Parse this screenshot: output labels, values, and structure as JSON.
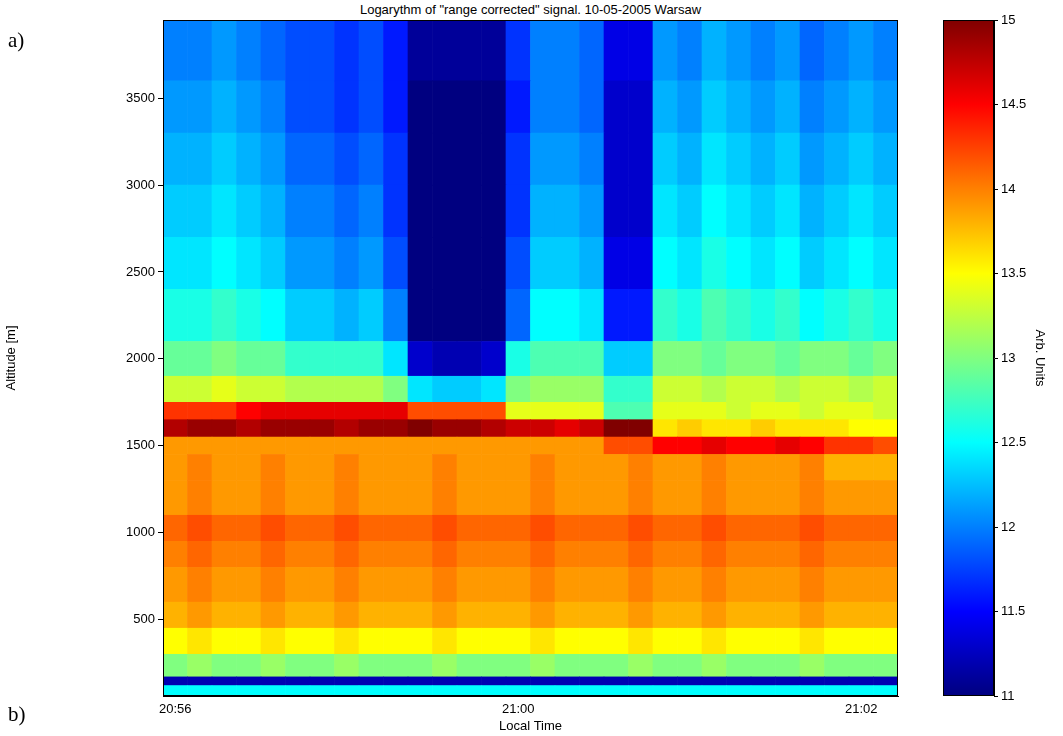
{
  "chart_data": {
    "type": "heatmap",
    "title": "Logarythm of \"range corrected\" signal. 10-05-2005 Warsaw",
    "x_label": "Local Time",
    "y_label": "Altitude [m]",
    "annotations": [
      "a)",
      "b)"
    ],
    "categories": [
      "20:56",
      null,
      null,
      null,
      null,
      null,
      null,
      null,
      null,
      null,
      null,
      null,
      null,
      null,
      "21:00",
      null,
      null,
      null,
      null,
      null,
      null,
      null,
      null,
      null,
      null,
      null,
      null,
      null,
      "21:02",
      null
    ],
    "y_edges": [
      60,
      120,
      170,
      300,
      450,
      600,
      800,
      950,
      1100,
      1300,
      1450,
      1550,
      1650,
      1750,
      1900,
      2100,
      2400,
      2700,
      3000,
      3300,
      3600,
      3950
    ],
    "ylim": [
      60,
      3950
    ],
    "yticks": [
      500,
      1000,
      1500,
      2000,
      2500,
      3000,
      3500
    ],
    "color": "jet",
    "colorbar": {
      "label": "Arb. Units",
      "range": [
        11,
        15
      ],
      "ticks": [
        11,
        11.5,
        12,
        12.5,
        13,
        13.5,
        14,
        14.5,
        15
      ]
    },
    "cells": [
      [
        12.5,
        12.5,
        12.5,
        12.5,
        12.5,
        12.5,
        12.5,
        12.5,
        12.5,
        12.5,
        12.5,
        12.5,
        12.5,
        12.5,
        12.5,
        12.5,
        12.5,
        12.5,
        12.5,
        12.5,
        12.5,
        12.5,
        12.5,
        12.5,
        12.5,
        12.5,
        12.5,
        12.5,
        12.5,
        12.5
      ],
      [
        11.2,
        11.2,
        11.2,
        11.2,
        11.2,
        11.2,
        11.2,
        11.2,
        11.2,
        11.2,
        11.2,
        11.2,
        11.2,
        11.2,
        11.2,
        11.2,
        11.2,
        11.2,
        11.2,
        11.2,
        11.2,
        11.2,
        11.2,
        11.2,
        11.2,
        11.2,
        11.2,
        11.2,
        11.2,
        11.2
      ],
      [
        13.0,
        13.1,
        13.0,
        13.0,
        13.1,
        13.0,
        13.0,
        13.1,
        13.0,
        13.0,
        13.0,
        13.1,
        13.0,
        13.0,
        13.0,
        13.1,
        13.0,
        13.0,
        13.0,
        13.1,
        13.0,
        13.0,
        13.1,
        13.0,
        13.0,
        13.0,
        13.1,
        13.0,
        13.0,
        13.0
      ],
      [
        13.5,
        13.6,
        13.5,
        13.5,
        13.6,
        13.5,
        13.5,
        13.6,
        13.5,
        13.5,
        13.5,
        13.6,
        13.5,
        13.5,
        13.5,
        13.6,
        13.5,
        13.5,
        13.5,
        13.6,
        13.5,
        13.5,
        13.6,
        13.5,
        13.5,
        13.5,
        13.6,
        13.5,
        13.5,
        13.5
      ],
      [
        13.8,
        13.9,
        13.8,
        13.8,
        13.9,
        13.8,
        13.8,
        13.9,
        13.8,
        13.8,
        13.8,
        13.9,
        13.8,
        13.8,
        13.8,
        13.9,
        13.8,
        13.8,
        13.8,
        13.9,
        13.8,
        13.8,
        13.9,
        13.8,
        13.8,
        13.8,
        13.9,
        13.8,
        13.8,
        13.8
      ],
      [
        13.9,
        14.0,
        13.9,
        13.9,
        14.0,
        13.9,
        13.9,
        14.0,
        13.9,
        13.9,
        13.9,
        14.0,
        13.9,
        13.9,
        13.9,
        14.0,
        13.9,
        13.9,
        13.9,
        14.0,
        13.9,
        13.9,
        14.0,
        13.9,
        13.9,
        13.9,
        14.0,
        13.9,
        13.9,
        13.9
      ],
      [
        14.0,
        14.1,
        14.0,
        14.0,
        14.1,
        14.0,
        14.0,
        14.1,
        14.0,
        14.0,
        14.0,
        14.1,
        14.0,
        14.0,
        14.0,
        14.1,
        14.0,
        14.0,
        14.0,
        14.1,
        14.0,
        14.0,
        14.1,
        14.0,
        14.0,
        14.0,
        14.1,
        14.0,
        14.0,
        14.0
      ],
      [
        14.1,
        14.2,
        14.1,
        14.1,
        14.2,
        14.1,
        14.1,
        14.2,
        14.1,
        14.1,
        14.1,
        14.2,
        14.1,
        14.1,
        14.1,
        14.2,
        14.1,
        14.1,
        14.1,
        14.2,
        14.1,
        14.1,
        14.2,
        14.1,
        14.1,
        14.1,
        14.2,
        14.1,
        14.1,
        14.1
      ],
      [
        13.9,
        14.0,
        13.9,
        13.9,
        14.0,
        13.9,
        13.9,
        14.0,
        13.9,
        13.9,
        13.9,
        14.0,
        13.9,
        13.9,
        13.9,
        14.0,
        13.9,
        13.9,
        13.9,
        14.0,
        13.9,
        13.9,
        14.0,
        13.9,
        13.9,
        13.9,
        14.0,
        13.9,
        13.9,
        13.9
      ],
      [
        13.9,
        14.0,
        13.9,
        13.9,
        14.0,
        13.9,
        13.9,
        14.0,
        13.9,
        13.9,
        13.9,
        14.0,
        13.9,
        13.9,
        13.9,
        14.0,
        13.9,
        13.9,
        13.9,
        14.0,
        13.9,
        13.9,
        14.0,
        13.9,
        13.9,
        13.9,
        14.0,
        13.8,
        13.8,
        13.8
      ],
      [
        13.9,
        13.9,
        13.9,
        13.9,
        13.9,
        13.9,
        13.9,
        13.9,
        13.9,
        13.9,
        13.9,
        13.9,
        13.9,
        13.9,
        13.9,
        13.9,
        13.9,
        13.9,
        14.2,
        14.2,
        14.5,
        14.5,
        14.6,
        14.5,
        14.5,
        14.6,
        14.5,
        14.3,
        14.3,
        14.2
      ],
      [
        14.8,
        14.9,
        14.9,
        14.8,
        14.9,
        14.9,
        14.9,
        14.8,
        14.9,
        14.9,
        15.0,
        14.9,
        14.9,
        14.8,
        14.7,
        14.7,
        14.6,
        14.7,
        15.0,
        15.0,
        13.6,
        13.7,
        13.6,
        13.6,
        13.7,
        13.6,
        13.6,
        13.6,
        13.5,
        13.5
      ],
      [
        14.3,
        14.3,
        14.3,
        14.5,
        14.6,
        14.6,
        14.6,
        14.6,
        14.6,
        14.6,
        14.2,
        14.2,
        14.2,
        14.2,
        13.4,
        13.4,
        13.4,
        13.4,
        12.8,
        12.8,
        13.4,
        13.4,
        13.4,
        13.3,
        13.4,
        13.4,
        13.3,
        13.4,
        13.4,
        13.3
      ],
      [
        13.3,
        13.3,
        13.4,
        13.3,
        13.3,
        13.2,
        13.2,
        13.2,
        13.2,
        13.0,
        12.4,
        12.3,
        12.3,
        12.4,
        13.0,
        13.1,
        13.1,
        13.1,
        12.7,
        12.7,
        13.3,
        13.3,
        13.2,
        13.3,
        13.3,
        13.2,
        13.3,
        13.3,
        13.2,
        13.3
      ],
      [
        12.9,
        12.9,
        13.0,
        12.9,
        12.9,
        12.7,
        12.7,
        12.7,
        12.7,
        12.4,
        11.3,
        11.2,
        11.2,
        11.3,
        12.6,
        12.8,
        12.8,
        12.8,
        12.3,
        12.3,
        13.0,
        13.0,
        12.9,
        13.0,
        13.0,
        12.9,
        13.0,
        13.0,
        12.9,
        13.0
      ],
      [
        12.6,
        12.6,
        12.7,
        12.6,
        12.5,
        12.3,
        12.3,
        12.2,
        12.3,
        12.0,
        11.0,
        11.0,
        11.0,
        11.0,
        11.9,
        12.5,
        12.5,
        12.4,
        11.6,
        11.6,
        12.7,
        12.6,
        12.8,
        12.7,
        12.6,
        12.7,
        12.5,
        12.6,
        12.7,
        12.6
      ],
      [
        12.4,
        12.4,
        12.5,
        12.4,
        12.3,
        12.1,
        12.1,
        12.0,
        12.1,
        11.8,
        11.0,
        11.0,
        11.0,
        11.0,
        11.8,
        12.3,
        12.3,
        12.2,
        11.4,
        11.4,
        12.5,
        12.4,
        12.6,
        12.5,
        12.4,
        12.5,
        12.3,
        12.4,
        12.5,
        12.4
      ],
      [
        12.3,
        12.3,
        12.4,
        12.3,
        12.2,
        12.0,
        12.0,
        11.9,
        12.0,
        11.7,
        11.0,
        11.0,
        11.0,
        11.0,
        11.7,
        12.2,
        12.2,
        12.1,
        11.3,
        11.3,
        12.4,
        12.3,
        12.5,
        12.4,
        12.3,
        12.4,
        12.2,
        12.3,
        12.4,
        12.3
      ],
      [
        12.2,
        12.2,
        12.3,
        12.2,
        12.1,
        11.9,
        11.9,
        11.8,
        11.9,
        11.7,
        11.0,
        11.0,
        11.0,
        11.0,
        11.7,
        12.1,
        12.1,
        12.0,
        11.3,
        11.3,
        12.3,
        12.2,
        12.4,
        12.3,
        12.2,
        12.3,
        12.1,
        12.2,
        12.3,
        12.2
      ],
      [
        12.1,
        12.1,
        12.2,
        12.1,
        12.0,
        11.8,
        11.8,
        11.7,
        11.8,
        11.6,
        11.0,
        11.0,
        11.0,
        11.0,
        11.6,
        12.0,
        12.0,
        11.9,
        11.3,
        11.3,
        12.2,
        12.1,
        12.3,
        12.2,
        12.1,
        12.2,
        12.0,
        12.1,
        12.2,
        12.1
      ],
      [
        12.0,
        12.0,
        12.1,
        12.0,
        11.9,
        11.8,
        11.8,
        11.7,
        11.8,
        11.6,
        11.1,
        11.1,
        11.1,
        11.1,
        11.7,
        12.0,
        12.0,
        11.9,
        11.4,
        11.4,
        12.1,
        12.0,
        12.2,
        12.1,
        12.0,
        12.1,
        11.9,
        12.0,
        12.1,
        12.0
      ]
    ]
  }
}
